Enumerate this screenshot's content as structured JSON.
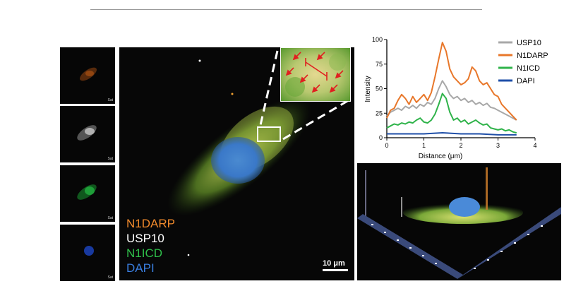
{
  "figure": {
    "thumb_label": "Sat",
    "legend": [
      {
        "label": "N1DARP",
        "color": "#f08a2c"
      },
      {
        "label": "USP10",
        "color": "#ffffff"
      },
      {
        "label": "N1ICD",
        "color": "#2fbf4a"
      },
      {
        "label": "DAPI",
        "color": "#3a7fe0"
      }
    ],
    "scale_bar": "10 μm"
  },
  "chart_data": {
    "type": "line",
    "xlabel": "Distance (μm)",
    "ylabel": "Intensity",
    "xlim": [
      0,
      4
    ],
    "ylim": [
      0,
      100
    ],
    "xticks": [
      "0",
      "1",
      "2",
      "3",
      "4"
    ],
    "yticks": [
      "0",
      "25",
      "50",
      "75",
      "100"
    ],
    "legend_position": "top-right",
    "series": [
      {
        "name": "USP10",
        "color": "#a8a8a8",
        "x": [
          0,
          0.1,
          0.2,
          0.3,
          0.4,
          0.5,
          0.6,
          0.7,
          0.8,
          0.9,
          1.0,
          1.1,
          1.2,
          1.3,
          1.4,
          1.5,
          1.6,
          1.7,
          1.8,
          1.9,
          2.0,
          2.1,
          2.2,
          2.3,
          2.4,
          2.5,
          2.6,
          2.7,
          2.8,
          2.9,
          3.0,
          3.1,
          3.2,
          3.3,
          3.4,
          3.5
        ],
        "y": [
          22,
          26,
          28,
          30,
          28,
          32,
          30,
          33,
          30,
          34,
          32,
          36,
          34,
          40,
          50,
          58,
          52,
          44,
          40,
          42,
          38,
          40,
          36,
          38,
          34,
          36,
          33,
          35,
          31,
          30,
          28,
          26,
          24,
          22,
          20,
          18
        ]
      },
      {
        "name": "N1DARP",
        "color": "#e8772a",
        "x": [
          0,
          0.1,
          0.2,
          0.3,
          0.4,
          0.5,
          0.6,
          0.7,
          0.8,
          0.9,
          1.0,
          1.1,
          1.2,
          1.3,
          1.4,
          1.5,
          1.6,
          1.7,
          1.8,
          1.9,
          2.0,
          2.1,
          2.2,
          2.3,
          2.4,
          2.5,
          2.6,
          2.7,
          2.8,
          2.9,
          3.0,
          3.1,
          3.2,
          3.3,
          3.4,
          3.5
        ],
        "y": [
          20,
          28,
          30,
          38,
          44,
          40,
          34,
          42,
          36,
          40,
          44,
          38,
          46,
          62,
          80,
          97,
          88,
          70,
          62,
          58,
          54,
          56,
          60,
          72,
          68,
          58,
          54,
          56,
          50,
          44,
          42,
          34,
          30,
          26,
          22,
          18
        ]
      },
      {
        "name": "N1ICD",
        "color": "#2fb34a",
        "x": [
          0,
          0.1,
          0.2,
          0.3,
          0.4,
          0.5,
          0.6,
          0.7,
          0.8,
          0.9,
          1.0,
          1.1,
          1.2,
          1.3,
          1.4,
          1.5,
          1.6,
          1.7,
          1.8,
          1.9,
          2.0,
          2.1,
          2.2,
          2.3,
          2.4,
          2.5,
          2.6,
          2.7,
          2.8,
          2.9,
          3.0,
          3.1,
          3.2,
          3.3,
          3.4,
          3.5
        ],
        "y": [
          10,
          12,
          14,
          13,
          15,
          14,
          16,
          15,
          18,
          20,
          16,
          15,
          18,
          24,
          34,
          45,
          40,
          26,
          18,
          20,
          16,
          18,
          14,
          16,
          18,
          15,
          13,
          14,
          10,
          9,
          8,
          9,
          7,
          8,
          6,
          5
        ]
      },
      {
        "name": "DAPI",
        "color": "#1f4fa8",
        "x": [
          0,
          0.5,
          1.0,
          1.5,
          2.0,
          2.5,
          3.0,
          3.5
        ],
        "y": [
          4,
          4,
          4,
          5,
          4,
          4,
          3,
          3
        ]
      }
    ]
  }
}
